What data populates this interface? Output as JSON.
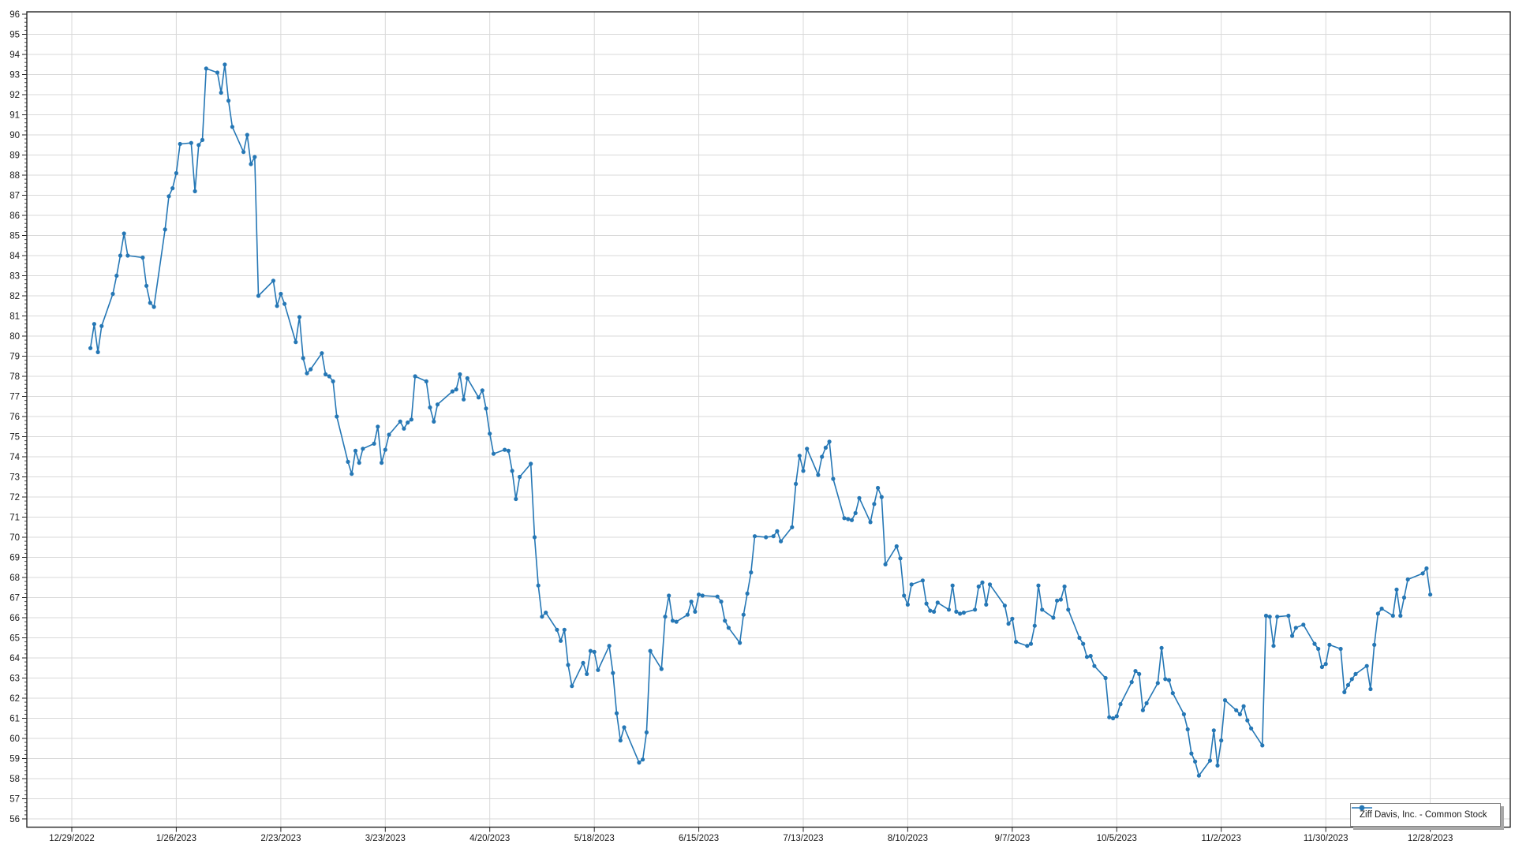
{
  "chart_data": {
    "type": "line",
    "title": "",
    "xlabel": "",
    "ylabel": "",
    "grid": true,
    "legend_position": "bottom-right",
    "y_axis": {
      "min": 56,
      "max": 96,
      "step": 1,
      "minor_step": 0.2
    },
    "x_axis": {
      "start_date": "2022-12-29",
      "end_date": "2023-12-28",
      "tick_interval_days": 28,
      "tick_labels": [
        "12/29/2022",
        "1/26/2023",
        "2/23/2023",
        "3/23/2023",
        "4/20/2023",
        "5/18/2023",
        "6/15/2023",
        "7/13/2023",
        "8/10/2023",
        "9/7/2023",
        "10/5/2023",
        "11/2/2023",
        "11/30/2023",
        "12/28/2023"
      ]
    },
    "colors": {
      "series": "#2577b5",
      "grid": "#d9d9d9",
      "axis": "#262626",
      "text": "#1a1a1a",
      "legend_border": "#868686",
      "legend_shadow": "#a8a8a8"
    },
    "series": [
      {
        "name": "Ziff Davis, Inc. - Common Stock",
        "color": "#2577b5",
        "marker": "circle",
        "dates": [
          "2023-01-03",
          "2023-01-04",
          "2023-01-05",
          "2023-01-06",
          "2023-01-09",
          "2023-01-10",
          "2023-01-11",
          "2023-01-12",
          "2023-01-13",
          "2023-01-17",
          "2023-01-18",
          "2023-01-19",
          "2023-01-20",
          "2023-01-23",
          "2023-01-24",
          "2023-01-25",
          "2023-01-26",
          "2023-01-27",
          "2023-01-30",
          "2023-01-31",
          "2023-02-01",
          "2023-02-02",
          "2023-02-03",
          "2023-02-06",
          "2023-02-07",
          "2023-02-08",
          "2023-02-09",
          "2023-02-10",
          "2023-02-13",
          "2023-02-14",
          "2023-02-15",
          "2023-02-16",
          "2023-02-17",
          "2023-02-21",
          "2023-02-22",
          "2023-02-23",
          "2023-02-24",
          "2023-02-27",
          "2023-02-28",
          "2023-03-01",
          "2023-03-02",
          "2023-03-03",
          "2023-03-06",
          "2023-03-07",
          "2023-03-08",
          "2023-03-09",
          "2023-03-10",
          "2023-03-13",
          "2023-03-14",
          "2023-03-15",
          "2023-03-16",
          "2023-03-17",
          "2023-03-20",
          "2023-03-21",
          "2023-03-22",
          "2023-03-23",
          "2023-03-24",
          "2023-03-27",
          "2023-03-28",
          "2023-03-29",
          "2023-03-30",
          "2023-03-31",
          "2023-04-03",
          "2023-04-04",
          "2023-04-05",
          "2023-04-06",
          "2023-04-10",
          "2023-04-11",
          "2023-04-12",
          "2023-04-13",
          "2023-04-14",
          "2023-04-17",
          "2023-04-18",
          "2023-04-19",
          "2023-04-20",
          "2023-04-21",
          "2023-04-24",
          "2023-04-25",
          "2023-04-26",
          "2023-04-27",
          "2023-04-28",
          "2023-05-01",
          "2023-05-02",
          "2023-05-03",
          "2023-05-04",
          "2023-05-05",
          "2023-05-08",
          "2023-05-09",
          "2023-05-10",
          "2023-05-11",
          "2023-05-12",
          "2023-05-15",
          "2023-05-16",
          "2023-05-17",
          "2023-05-18",
          "2023-05-19",
          "2023-05-22",
          "2023-05-23",
          "2023-05-24",
          "2023-05-25",
          "2023-05-26",
          "2023-05-30",
          "2023-05-31",
          "2023-06-01",
          "2023-06-02",
          "2023-06-05",
          "2023-06-06",
          "2023-06-07",
          "2023-06-08",
          "2023-06-09",
          "2023-06-12",
          "2023-06-13",
          "2023-06-14",
          "2023-06-15",
          "2023-06-16",
          "2023-06-20",
          "2023-06-21",
          "2023-06-22",
          "2023-06-23",
          "2023-06-26",
          "2023-06-27",
          "2023-06-28",
          "2023-06-29",
          "2023-06-30",
          "2023-07-03",
          "2023-07-05",
          "2023-07-06",
          "2023-07-07",
          "2023-07-10",
          "2023-07-11",
          "2023-07-12",
          "2023-07-13",
          "2023-07-14",
          "2023-07-17",
          "2023-07-18",
          "2023-07-19",
          "2023-07-20",
          "2023-07-21",
          "2023-07-24",
          "2023-07-25",
          "2023-07-26",
          "2023-07-27",
          "2023-07-28",
          "2023-07-31",
          "2023-08-01",
          "2023-08-02",
          "2023-08-03",
          "2023-08-04",
          "2023-08-07",
          "2023-08-08",
          "2023-08-09",
          "2023-08-10",
          "2023-08-11",
          "2023-08-14",
          "2023-08-15",
          "2023-08-16",
          "2023-08-17",
          "2023-08-18",
          "2023-08-21",
          "2023-08-22",
          "2023-08-23",
          "2023-08-24",
          "2023-08-25",
          "2023-08-28",
          "2023-08-29",
          "2023-08-30",
          "2023-08-31",
          "2023-09-01",
          "2023-09-05",
          "2023-09-06",
          "2023-09-07",
          "2023-09-08",
          "2023-09-11",
          "2023-09-12",
          "2023-09-13",
          "2023-09-14",
          "2023-09-15",
          "2023-09-18",
          "2023-09-19",
          "2023-09-20",
          "2023-09-21",
          "2023-09-22",
          "2023-09-25",
          "2023-09-26",
          "2023-09-27",
          "2023-09-28",
          "2023-09-29",
          "2023-10-02",
          "2023-10-03",
          "2023-10-04",
          "2023-10-05",
          "2023-10-06",
          "2023-10-09",
          "2023-10-10",
          "2023-10-11",
          "2023-10-12",
          "2023-10-13",
          "2023-10-16",
          "2023-10-17",
          "2023-10-18",
          "2023-10-19",
          "2023-10-20",
          "2023-10-23",
          "2023-10-24",
          "2023-10-25",
          "2023-10-26",
          "2023-10-27",
          "2023-10-30",
          "2023-10-31",
          "2023-11-01",
          "2023-11-02",
          "2023-11-03",
          "2023-11-06",
          "2023-11-07",
          "2023-11-08",
          "2023-11-09",
          "2023-11-10",
          "2023-11-13",
          "2023-11-14",
          "2023-11-15",
          "2023-11-16",
          "2023-11-17",
          "2023-11-20",
          "2023-11-21",
          "2023-11-22",
          "2023-11-24",
          "2023-11-27",
          "2023-11-28",
          "2023-11-29",
          "2023-11-30",
          "2023-12-01",
          "2023-12-04",
          "2023-12-05",
          "2023-12-06",
          "2023-12-07",
          "2023-12-08",
          "2023-12-11",
          "2023-12-12",
          "2023-12-13",
          "2023-12-14",
          "2023-12-15",
          "2023-12-18",
          "2023-12-19",
          "2023-12-20",
          "2023-12-21",
          "2023-12-22",
          "2023-12-26",
          "2023-12-27",
          "2023-12-28"
        ],
        "closes": [
          79.4,
          80.6,
          79.2,
          80.5,
          82.1,
          83.0,
          84.0,
          85.1,
          84.0,
          83.9,
          82.5,
          81.65,
          81.45,
          85.3,
          86.95,
          87.35,
          88.1,
          89.55,
          89.6,
          87.2,
          89.5,
          89.75,
          93.3,
          93.1,
          92.1,
          93.5,
          91.7,
          90.4,
          89.15,
          90.0,
          88.55,
          88.9,
          82.0,
          82.75,
          81.5,
          82.1,
          81.6,
          79.7,
          80.95,
          78.9,
          78.15,
          78.35,
          79.15,
          78.1,
          78.0,
          77.75,
          76.0,
          73.75,
          73.15,
          74.3,
          73.7,
          74.4,
          74.65,
          75.5,
          73.7,
          74.35,
          75.1,
          75.75,
          75.4,
          75.7,
          75.85,
          78.0,
          77.75,
          76.45,
          75.75,
          76.6,
          77.25,
          77.35,
          78.1,
          76.85,
          77.9,
          76.95,
          77.3,
          76.4,
          75.15,
          74.15,
          74.35,
          74.3,
          73.3,
          71.9,
          73.0,
          73.65,
          70.0,
          67.6,
          66.05,
          66.25,
          65.4,
          64.85,
          65.4,
          63.65,
          62.6,
          63.75,
          63.2,
          64.35,
          64.3,
          63.4,
          64.6,
          63.25,
          61.25,
          59.9,
          60.55,
          58.8,
          58.95,
          60.3,
          64.35,
          63.45,
          66.05,
          67.1,
          65.85,
          65.8,
          66.15,
          66.8,
          66.3,
          67.15,
          67.1,
          67.05,
          66.8,
          65.85,
          65.5,
          64.75,
          66.15,
          67.2,
          68.25,
          70.05,
          70.0,
          70.05,
          70.3,
          69.8,
          70.5,
          72.65,
          74.05,
          73.3,
          74.4,
          73.1,
          74.0,
          74.45,
          74.75,
          72.9,
          70.95,
          70.9,
          70.85,
          71.2,
          71.95,
          70.75,
          71.65,
          72.45,
          72.0,
          68.65,
          69.55,
          68.95,
          67.1,
          66.65,
          67.65,
          67.85,
          66.7,
          66.35,
          66.3,
          66.75,
          66.4,
          67.6,
          66.3,
          66.2,
          66.25,
          66.4,
          67.55,
          67.75,
          66.65,
          67.65,
          66.6,
          65.7,
          65.95,
          64.8,
          64.6,
          64.7,
          65.6,
          67.6,
          66.4,
          66.0,
          66.85,
          66.9,
          67.55,
          66.4,
          65.0,
          64.7,
          64.05,
          64.1,
          63.6,
          63.0,
          61.05,
          61.0,
          61.1,
          61.7,
          62.8,
          63.35,
          63.2,
          61.4,
          61.75,
          62.75,
          64.5,
          62.95,
          62.9,
          62.25,
          61.2,
          60.45,
          59.25,
          58.85,
          58.15,
          58.9,
          60.4,
          58.65,
          59.9,
          61.9,
          61.4,
          61.2,
          61.6,
          60.9,
          60.5,
          59.65,
          66.1,
          66.05,
          64.6,
          66.05,
          66.1,
          65.1,
          65.5,
          65.65,
          64.7,
          64.45,
          63.55,
          63.7,
          64.65,
          64.45,
          62.3,
          62.65,
          62.95,
          63.2,
          63.6,
          62.45,
          64.65,
          66.2,
          66.45,
          66.1,
          67.4,
          66.1,
          67.0,
          67.9,
          68.2,
          68.45,
          67.15
        ]
      }
    ]
  }
}
